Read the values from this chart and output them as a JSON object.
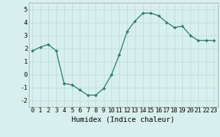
{
  "x": [
    0,
    1,
    2,
    3,
    4,
    5,
    6,
    7,
    8,
    9,
    10,
    11,
    12,
    13,
    14,
    15,
    16,
    17,
    18,
    19,
    20,
    21,
    22,
    23
  ],
  "y": [
    1.8,
    2.1,
    2.3,
    1.8,
    -0.7,
    -0.8,
    -1.2,
    -1.6,
    -1.6,
    -1.1,
    -0.05,
    1.5,
    3.3,
    4.1,
    4.7,
    4.7,
    4.5,
    4.0,
    3.6,
    3.7,
    3.0,
    2.6,
    2.6,
    2.6
  ],
  "line_color": "#2e7d6e",
  "marker": "D",
  "marker_size": 2.0,
  "bg_color": "#d8f0ed",
  "grid_color": "#b8d8d4",
  "xlabel": "Humidex (Indice chaleur)",
  "ylim": [
    -2.5,
    5.5
  ],
  "xlim": [
    -0.5,
    23.5
  ],
  "yticks": [
    -2,
    -1,
    0,
    1,
    2,
    3,
    4,
    5
  ],
  "xticks": [
    0,
    1,
    2,
    3,
    4,
    5,
    6,
    7,
    8,
    9,
    10,
    11,
    12,
    13,
    14,
    15,
    16,
    17,
    18,
    19,
    20,
    21,
    22,
    23
  ],
  "xlabel_fontsize": 7.5,
  "tick_fontsize": 6.5,
  "line_width": 1.0
}
